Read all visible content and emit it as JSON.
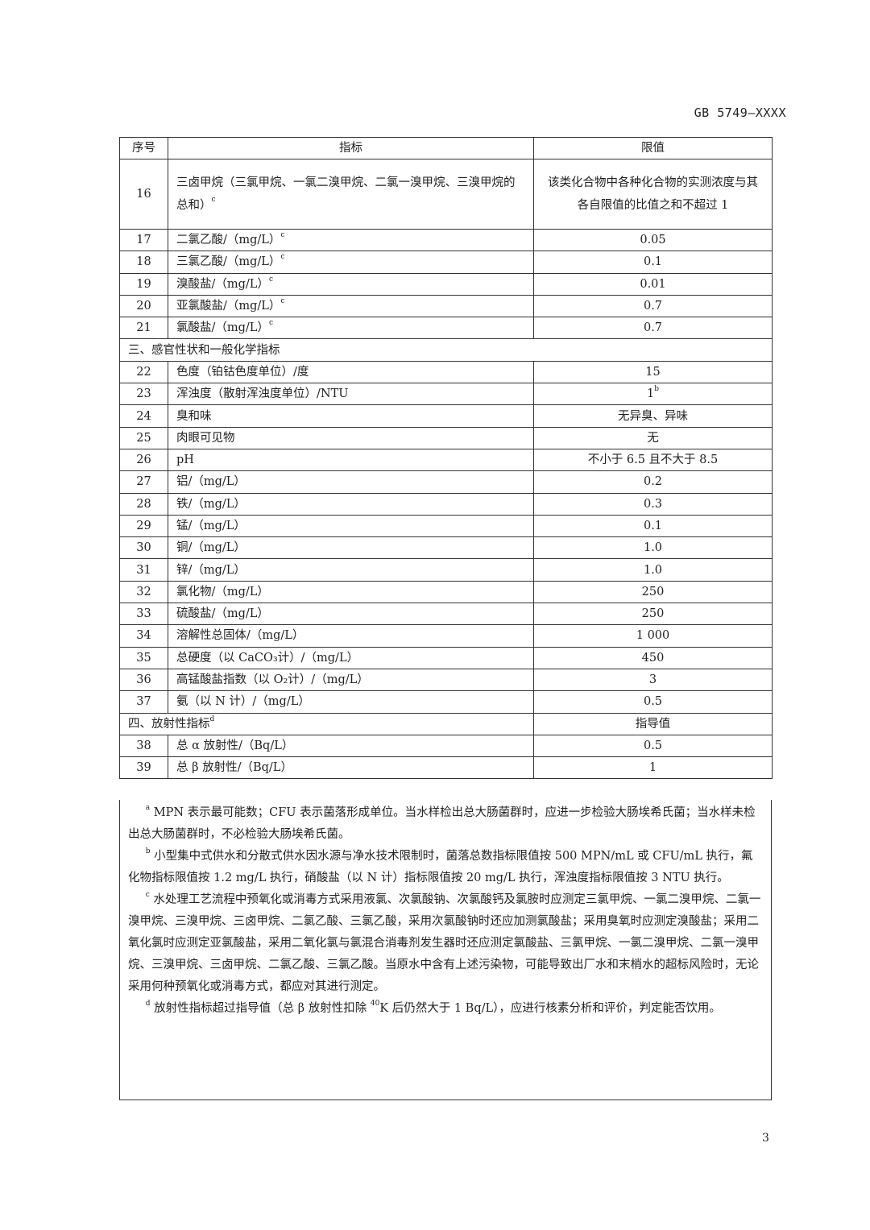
{
  "header": {
    "standard": "GB 5749—XXXX"
  },
  "table": {
    "columns": [
      "序号",
      "指标",
      "限值"
    ],
    "row16": {
      "no": "16",
      "name": "三卤甲烷（三氯甲烷、一氯二溴甲烷、二氯一溴甲烷、三溴甲烷的总和）",
      "sup": "c",
      "limit": "该类化合物中各种化合物的实测浓度与其各自限值的比值之和不超过 1"
    },
    "rows_a": [
      {
        "no": "17",
        "name": "二氯乙酸/（mg/L）",
        "sup": "c",
        "limit": "0.05"
      },
      {
        "no": "18",
        "name": "三氯乙酸/（mg/L）",
        "sup": "c",
        "limit": "0.1"
      },
      {
        "no": "19",
        "name": "溴酸盐/（mg/L）",
        "sup": "c",
        "limit": "0.01"
      },
      {
        "no": "20",
        "name": "亚氯酸盐/（mg/L）",
        "sup": "c",
        "limit": "0.7"
      },
      {
        "no": "21",
        "name": "氯酸盐/（mg/L）",
        "sup": "c",
        "limit": "0.7"
      }
    ],
    "section3": "三、感官性状和一般化学指标",
    "rows_b": [
      {
        "no": "22",
        "name": "色度（铂钴色度单位）/度",
        "limit": "15"
      },
      {
        "no": "23",
        "name": "浑浊度（散射浑浊度单位）/NTU",
        "limit": "1",
        "limit_sup": "b"
      },
      {
        "no": "24",
        "name": "臭和味",
        "limit": "无异臭、异味"
      },
      {
        "no": "25",
        "name": "肉眼可见物",
        "limit": "无"
      },
      {
        "no": "26",
        "name": "pH",
        "limit": "不小于 6.5 且不大于 8.5"
      },
      {
        "no": "27",
        "name": "铝/（mg/L）",
        "limit": "0.2"
      },
      {
        "no": "28",
        "name": "铁/（mg/L）",
        "limit": "0.3"
      },
      {
        "no": "29",
        "name": "锰/（mg/L）",
        "limit": "0.1"
      },
      {
        "no": "30",
        "name": "铜/（mg/L）",
        "limit": "1.0"
      },
      {
        "no": "31",
        "name": "锌/（mg/L）",
        "limit": "1.0"
      },
      {
        "no": "32",
        "name": "氯化物/（mg/L）",
        "limit": "250"
      },
      {
        "no": "33",
        "name": "硫酸盐/（mg/L）",
        "limit": "250"
      },
      {
        "no": "34",
        "name": "溶解性总固体/（mg/L）",
        "limit": "1 000"
      },
      {
        "no": "35",
        "name": "总硬度（以 CaCO₃计）/（mg/L）",
        "limit": "450"
      },
      {
        "no": "36",
        "name": "高锰酸盐指数（以 O₂计）/（mg/L）",
        "limit": "3"
      },
      {
        "no": "37",
        "name": "氨（以 N 计）/（mg/L）",
        "limit": "0.5"
      }
    ],
    "section4": {
      "label": "四、放射性指标",
      "sup": "d",
      "limit": "指导值"
    },
    "rows_c": [
      {
        "no": "38",
        "name": "总 α 放射性/（Bq/L）",
        "limit": "0.5"
      },
      {
        "no": "39",
        "name": "总 β 放射性/（Bq/L）",
        "limit": "1"
      }
    ]
  },
  "footnotes": [
    {
      "mark": "a",
      "text": "MPN 表示最可能数；CFU 表示菌落形成单位。当水样检出总大肠菌群时，应进一步检验大肠埃希氏菌；当水样未检出总大肠菌群时，不必检验大肠埃希氏菌。"
    },
    {
      "mark": "b",
      "text": "小型集中式供水和分散式供水因水源与净水技术限制时，菌落总数指标限值按 500 MPN/mL 或 CFU/mL 执行，氟化物指标限值按 1.2 mg/L 执行，硝酸盐（以 N 计）指标限值按 20 mg/L 执行，浑浊度指标限值按 3 NTU 执行。"
    },
    {
      "mark": "c",
      "text": "水处理工艺流程中预氧化或消毒方式采用液氯、次氯酸钠、次氯酸钙及氯胺时应测定三氯甲烷、一氯二溴甲烷、二氯一溴甲烷、三溴甲烷、三卤甲烷、二氯乙酸、三氯乙酸，采用次氯酸钠时还应加测氯酸盐；采用臭氧时应测定溴酸盐；采用二氧化氯时应测定亚氯酸盐，采用二氧化氯与氯混合消毒剂发生器时还应测定氯酸盐、三氯甲烷、一氯二溴甲烷、二氯一溴甲烷、三溴甲烷、三卤甲烷、二氯乙酸、三氯乙酸。当原水中含有上述污染物，可能导致出厂水和末梢水的超标风险时，无论采用何种预氧化或消毒方式，都应对其进行测定。"
    },
    {
      "mark": "d",
      "text_pre": "放射性指标超过指导值（总 β 放射性扣除",
      "iso_sup": "40",
      "text_post": "K 后仍然大于 1 Bq/L），应进行核素分析和评价，判定能否饮用。"
    }
  ],
  "footer": {
    "page_number": "3"
  }
}
